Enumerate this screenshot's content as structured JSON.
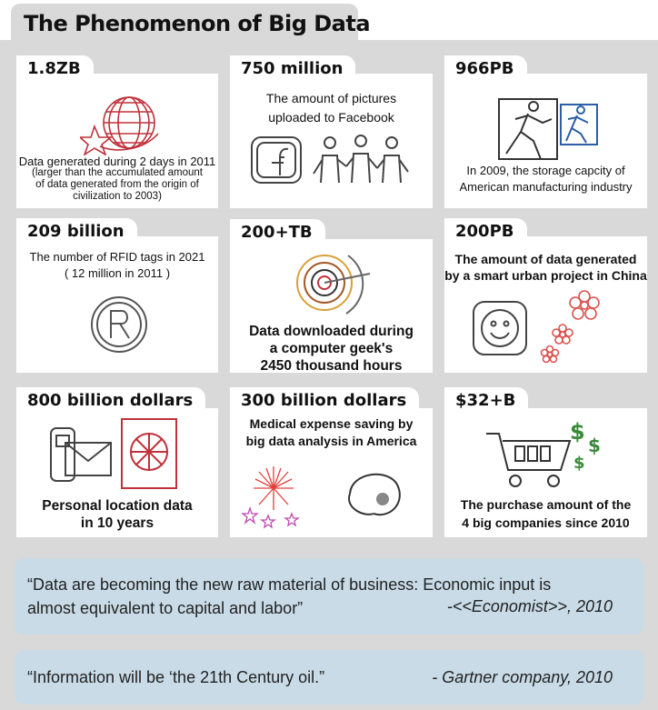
{
  "title": "The Phenomenon of Big Data",
  "cards": [
    {
      "tag": "1.8ZB",
      "lines": [
        "Data generated during 2 days in 2011",
        "(larger than the accumulated amount",
        "of data generated from the origin of",
        "civilization to 2003)"
      ],
      "icon": "globe-star-icon"
    },
    {
      "tag": "750 million",
      "lines": [
        "The amount of pictures",
        "uploaded to Facebook"
      ],
      "icon": "facebook-people-icon"
    },
    {
      "tag": "966PB",
      "lines": [
        "In 2009, the storage capcity of",
        "American manufacturing industry"
      ],
      "icon": "running-figures-icon"
    },
    {
      "tag": "209 billion",
      "lines": [
        "The number of RFID tags in 2021",
        "( 12 million in 2011 )"
      ],
      "icon": "registered-mark-icon"
    },
    {
      "tag": "200+TB",
      "lines": [
        "Data downloaded during",
        "a computer geek's",
        "2450 thousand hours"
      ],
      "icon": "target-spiral-icon"
    },
    {
      "tag": "200PB",
      "lines": [
        "The amount of data generated",
        "by a smart urban project in China"
      ],
      "icon": "smiley-flowers-icon"
    },
    {
      "tag": "800 billion dollars",
      "lines": [
        "Personal location data",
        "in 10 years"
      ],
      "icon": "phone-mail-icon"
    },
    {
      "tag": "300 billion dollars",
      "lines": [
        "Medical expense saving by",
        "big data analysis in America"
      ],
      "icon": "stethoscope-fireworks-icon"
    },
    {
      "tag": "$32+B",
      "lines": [
        "The purchase amount of the",
        "4 big companies since 2010"
      ],
      "icon": "shopping-cart-dollar-icon"
    }
  ],
  "quotes": [
    {
      "lines": [
        "“Data are becoming the new raw material of business: Economic input is",
        "almost equivalent to capital and labor”"
      ],
      "source": "-<<Economist>>, 2010"
    },
    {
      "lines": [
        "“Information will be ‘the 21th Century oil.”"
      ],
      "source": "- Gartner company, 2010"
    }
  ]
}
